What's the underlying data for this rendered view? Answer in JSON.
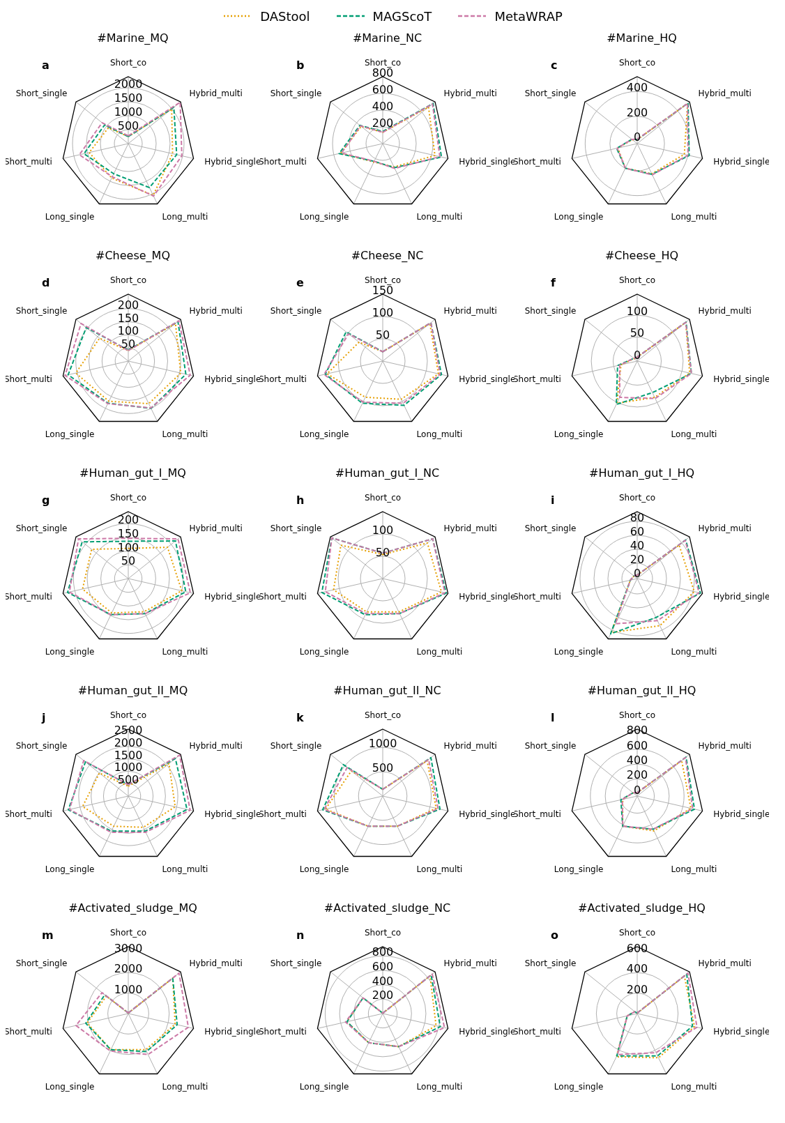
{
  "chart_data": [
    {
      "type": "radar",
      "title": "#Marine_MQ",
      "annotations": [
        "a"
      ],
      "legend": "top",
      "categories": [
        "Short_co",
        "Hybrid_multi",
        "Hybrid_single",
        "Long_multi",
        "Long_single",
        "Short_multi",
        "Short_single"
      ],
      "ylim": [
        0,
        2400
      ],
      "yticks": [
        500,
        1000,
        1500,
        2000
      ],
      "grid": true,
      "series": [
        {
          "name": "DAStool",
          "color": "#e69f00",
          "line_style": "dotted",
          "values": [
            250,
            1990,
            1630,
            2060,
            1370,
            1440,
            910
          ]
        },
        {
          "name": "MAGScoT",
          "color": "#009e73",
          "line_style": "dashed",
          "values": [
            250,
            2090,
            1780,
            1750,
            1200,
            1630,
            1080
          ]
        },
        {
          "name": "MetaWRAP",
          "color": "#cc79a7",
          "line_style": "dashed",
          "values": [
            280,
            2380,
            1970,
            2090,
            1320,
            1800,
            1200
          ]
        }
      ]
    },
    {
      "type": "radar",
      "title": "#Marine_NC",
      "annotations": [
        "b"
      ],
      "categories": [
        "Short_co",
        "Hybrid_multi",
        "Hybrid_single",
        "Long_multi",
        "Long_single",
        "Short_multi",
        "Short_single"
      ],
      "ylim": [
        0,
        800
      ],
      "yticks": [
        200,
        400,
        600,
        800
      ],
      "grid": true,
      "series": [
        {
          "color": "#e69f00",
          "line_style": "dotted",
          "values": [
            135,
            700,
            640,
            310,
            245,
            515,
            330
          ]
        },
        {
          "color": "#009e73",
          "line_style": "dashed",
          "values": [
            145,
            770,
            720,
            320,
            235,
            535,
            350
          ]
        },
        {
          "color": "#cc79a7",
          "line_style": "dashed",
          "values": [
            135,
            760,
            700,
            330,
            235,
            505,
            340
          ]
        }
      ]
    },
    {
      "type": "radar",
      "title": "#Marine_HQ",
      "annotations": [
        "c"
      ],
      "categories": [
        "Short_co",
        "Hybrid_multi",
        "Hybrid_single",
        "Long_multi",
        "Long_single",
        "Short_multi",
        "Short_single"
      ],
      "ylim": [
        -20,
        520
      ],
      "yticks": [
        0,
        200,
        400
      ],
      "grid": true,
      "series": [
        {
          "color": "#e69f00",
          "line_style": "dotted",
          "values": [
            12,
            500,
            370,
            250,
            200,
            140,
            30
          ]
        },
        {
          "color": "#009e73",
          "line_style": "dashed",
          "values": [
            12,
            505,
            410,
            255,
            200,
            150,
            35
          ]
        },
        {
          "color": "#cc79a7",
          "line_style": "dashed",
          "values": [
            15,
            500,
            400,
            260,
            200,
            145,
            35
          ]
        }
      ]
    },
    {
      "type": "radar",
      "title": "#Cheese_MQ",
      "annotations": [
        "d"
      ],
      "categories": [
        "Short_co",
        "Hybrid_multi",
        "Hybrid_single",
        "Long_multi",
        "Long_single",
        "Short_multi",
        "Short_single"
      ],
      "ylim": [
        0,
        255
      ],
      "yticks": [
        50,
        100,
        150,
        200
      ],
      "grid": true,
      "series": [
        {
          "color": "#e69f00",
          "line_style": "dotted",
          "values": [
            40,
            230,
            205,
            180,
            170,
            205,
            140
          ]
        },
        {
          "color": "#009e73",
          "line_style": "dashed",
          "values": [
            42,
            242,
            225,
            200,
            178,
            235,
            205
          ]
        },
        {
          "color": "#cc79a7",
          "line_style": "dashed",
          "values": [
            40,
            247,
            242,
            198,
            180,
            247,
            230
          ]
        }
      ]
    },
    {
      "type": "radar",
      "title": "#Cheese_NC",
      "annotations": [
        "e"
      ],
      "categories": [
        "Short_co",
        "Hybrid_multi",
        "Hybrid_single",
        "Long_multi",
        "Long_single",
        "Short_multi",
        "Short_single"
      ],
      "ylim": [
        0,
        150
      ],
      "yticks": [
        50,
        100,
        150
      ],
      "grid": true,
      "series": [
        {
          "color": "#e69f00",
          "line_style": "dotted",
          "values": [
            21,
            135,
            128,
            95,
            90,
            128,
            68
          ]
        },
        {
          "color": "#009e73",
          "line_style": "dashed",
          "values": [
            21,
            138,
            135,
            110,
            105,
            132,
            105
          ]
        },
        {
          "color": "#cc79a7",
          "line_style": "dashed",
          "values": [
            21,
            138,
            132,
            105,
            102,
            135,
            98
          ]
        }
      ]
    },
    {
      "type": "radar",
      "title": "#Cheese_HQ",
      "annotations": [
        "f"
      ],
      "categories": [
        "Short_co",
        "Hybrid_multi",
        "Hybrid_single",
        "Long_multi",
        "Long_single",
        "Short_multi",
        "Short_single"
      ],
      "ylim": [
        -5,
        148
      ],
      "yticks": [
        0,
        50,
        100
      ],
      "grid": true,
      "series": [
        {
          "color": "#e69f00",
          "line_style": "dotted",
          "values": [
            4,
            137,
            118,
            87,
            102,
            33,
            4
          ]
        },
        {
          "color": "#009e73",
          "line_style": "dashed",
          "values": [
            4,
            138,
            122,
            75,
            105,
            41,
            5
          ]
        },
        {
          "color": "#cc79a7",
          "line_style": "dashed",
          "values": [
            4,
            137,
            122,
            90,
            87,
            36,
            5
          ]
        }
      ]
    },
    {
      "type": "radar",
      "title": "#Human_gut_I_MQ",
      "annotations": [
        "g"
      ],
      "categories": [
        "Short_co",
        "Hybrid_multi",
        "Hybrid_single",
        "Long_multi",
        "Long_single",
        "Short_multi",
        "Short_single"
      ],
      "ylim": [
        0,
        244
      ],
      "yticks": [
        50,
        100,
        150,
        200
      ],
      "grid": true,
      "series": [
        {
          "color": "#e69f00",
          "line_style": "dotted",
          "values": [
            110,
            183,
            200,
            134,
            139,
            171,
            171
          ]
        },
        {
          "color": "#009e73",
          "line_style": "dashed",
          "values": [
            136,
            220,
            215,
            142,
            146,
            227,
            215
          ]
        },
        {
          "color": "#cc79a7",
          "line_style": "dashed",
          "values": [
            147,
            232,
            232,
            142,
            146,
            220,
            232
          ]
        }
      ]
    },
    {
      "type": "radar",
      "title": "#Human_gut_I_NC",
      "annotations": [
        "h"
      ],
      "categories": [
        "Short_co",
        "Hybrid_multi",
        "Hybrid_single",
        "Long_multi",
        "Long_single",
        "Short_multi",
        "Short_single"
      ],
      "ylim": [
        0,
        150
      ],
      "yticks": [
        50,
        100
      ],
      "grid": true,
      "series": [
        {
          "color": "#e69f00",
          "line_style": "dotted",
          "values": [
            54,
            128,
            135,
            83,
            83,
            113,
            120
          ]
        },
        {
          "color": "#009e73",
          "line_style": "dashed",
          "values": [
            57,
            143,
            146,
            87,
            90,
            140,
            146
          ]
        },
        {
          "color": "#cc79a7",
          "line_style": "dashed",
          "values": [
            57,
            143,
            143,
            87,
            87,
            132,
            146
          ]
        }
      ]
    },
    {
      "type": "radar",
      "title": "#Human_gut_I_HQ",
      "annotations": [
        "i"
      ],
      "categories": [
        "Short_co",
        "Hybrid_multi",
        "Hybrid_single",
        "Long_multi",
        "Long_single",
        "Short_multi",
        "Short_single"
      ],
      "ylim": [
        -2,
        94
      ],
      "yticks": [
        0,
        20,
        40,
        60,
        80
      ],
      "grid": true,
      "series": [
        {
          "color": "#e69f00",
          "line_style": "dotted",
          "values": [
            3,
            75,
            82,
            73,
            84,
            8,
            4
          ]
        },
        {
          "color": "#009e73",
          "line_style": "dashed",
          "values": [
            3,
            87,
            91,
            60,
            86,
            8,
            4
          ]
        },
        {
          "color": "#cc79a7",
          "line_style": "dashed",
          "values": [
            3,
            86,
            89,
            65,
            70,
            8,
            4
          ]
        }
      ]
    },
    {
      "type": "radar",
      "title": "#Human_gut_II_MQ",
      "annotations": [
        "j"
      ],
      "categories": [
        "Short_co",
        "Hybrid_multi",
        "Hybrid_single",
        "Long_multi",
        "Long_single",
        "Short_multi",
        "Short_single"
      ],
      "ylim": [
        0,
        2700
      ],
      "yticks": [
        500,
        1000,
        1500,
        2000,
        2500
      ],
      "grid": true,
      "series": [
        {
          "color": "#e69f00",
          "line_style": "dotted",
          "values": [
            400,
            2100,
            1940,
            1400,
            1350,
            1890,
            1490
          ]
        },
        {
          "color": "#009e73",
          "line_style": "dashed",
          "values": [
            460,
            2430,
            2430,
            1570,
            1570,
            2480,
            2210
          ]
        },
        {
          "color": "#cc79a7",
          "line_style": "dashed",
          "values": [
            460,
            2650,
            2560,
            1620,
            1620,
            2430,
            2300
          ]
        }
      ]
    },
    {
      "type": "radar",
      "title": "#Human_gut_II_NC",
      "annotations": [
        "k"
      ],
      "categories": [
        "Short_co",
        "Hybrid_multi",
        "Hybrid_single",
        "Long_multi",
        "Long_single",
        "Short_multi",
        "Short_single"
      ],
      "ylim": [
        0,
        1380
      ],
      "yticks": [
        500,
        1000
      ],
      "grid": true,
      "series": [
        {
          "color": "#e69f00",
          "line_style": "dotted",
          "values": [
            140,
            1170,
            1130,
            690,
            690,
            1210,
            830
          ]
        },
        {
          "color": "#009e73",
          "line_style": "dashed",
          "values": [
            140,
            1270,
            1210,
            690,
            690,
            1270,
            1040
          ]
        },
        {
          "color": "#cc79a7",
          "line_style": "dashed",
          "values": [
            140,
            1210,
            1170,
            690,
            690,
            1240,
            940
          ]
        }
      ]
    },
    {
      "type": "radar",
      "title": "#Human_gut_II_HQ",
      "annotations": [
        "l"
      ],
      "categories": [
        "Short_co",
        "Hybrid_multi",
        "Hybrid_single",
        "Long_multi",
        "Long_single",
        "Short_multi",
        "Short_single"
      ],
      "ylim": [
        -30,
        870
      ],
      "yticks": [
        0,
        200,
        400,
        600,
        800
      ],
      "grid": true,
      "series": [
        {
          "color": "#e69f00",
          "line_style": "dotted",
          "values": [
            15,
            735,
            710,
            490,
            420,
            170,
            40
          ]
        },
        {
          "color": "#009e73",
          "line_style": "dashed",
          "values": [
            15,
            810,
            760,
            465,
            420,
            195,
            40
          ]
        },
        {
          "color": "#cc79a7",
          "line_style": "dashed",
          "values": [
            15,
            800,
            735,
            465,
            420,
            175,
            40
          ]
        }
      ]
    },
    {
      "type": "radar",
      "title": "#Activated_sludge_MQ",
      "annotations": [
        "m"
      ],
      "categories": [
        "Short_co",
        "Hybrid_multi",
        "Hybrid_single",
        "Long_multi",
        "Long_single",
        "Short_multi",
        "Short_single"
      ],
      "ylim": [
        0,
        3270
      ],
      "yticks": [
        1000,
        2000,
        3000
      ],
      "grid": true,
      "series": [
        {
          "color": "#e69f00",
          "line_style": "dotted",
          "values": [
            30,
            2780,
            2350,
            1960,
            1960,
            2060,
            1370
          ]
        },
        {
          "color": "#009e73",
          "line_style": "dashed",
          "values": [
            30,
            2780,
            2450,
            2060,
            1960,
            2130,
            1470
          ]
        },
        {
          "color": "#cc79a7",
          "line_style": "dashed",
          "values": [
            30,
            3170,
            3010,
            2220,
            2030,
            2620,
            1640
          ]
        }
      ]
    },
    {
      "type": "radar",
      "title": "#Activated_sludge_NC",
      "annotations": [
        "n"
      ],
      "categories": [
        "Short_co",
        "Hybrid_multi",
        "Hybrid_single",
        "Long_multi",
        "Long_single",
        "Short_multi",
        "Short_single"
      ],
      "ylim": [
        0,
        930
      ],
      "yticks": [
        200,
        400,
        600,
        800
      ],
      "grid": true,
      "series": [
        {
          "color": "#e69f00",
          "line_style": "dotted",
          "values": [
            5,
            840,
            760,
            510,
            450,
            510,
            350
          ]
        },
        {
          "color": "#009e73",
          "line_style": "dashed",
          "values": [
            5,
            860,
            820,
            510,
            450,
            510,
            350
          ]
        },
        {
          "color": "#cc79a7",
          "line_style": "dashed",
          "values": [
            5,
            880,
            880,
            510,
            450,
            530,
            350
          ]
        }
      ]
    },
    {
      "type": "radar",
      "title": "#Activated_sludge_HQ",
      "annotations": [
        "o"
      ],
      "categories": [
        "Short_co",
        "Hybrid_multi",
        "Hybrid_single",
        "Long_multi",
        "Long_single",
        "Short_multi",
        "Short_single"
      ],
      "ylim": [
        0,
        655
      ],
      "yticks": [
        200,
        400,
        600
      ],
      "grid": true,
      "series": [
        {
          "color": "#e69f00",
          "line_style": "dotted",
          "values": [
            5,
            590,
            575,
            480,
            470,
            100,
            30
          ]
        },
        {
          "color": "#009e73",
          "line_style": "dashed",
          "values": [
            5,
            620,
            555,
            460,
            460,
            100,
            30
          ]
        },
        {
          "color": "#cc79a7",
          "line_style": "dashed",
          "values": [
            5,
            635,
            600,
            425,
            445,
            100,
            30
          ]
        }
      ]
    }
  ]
}
